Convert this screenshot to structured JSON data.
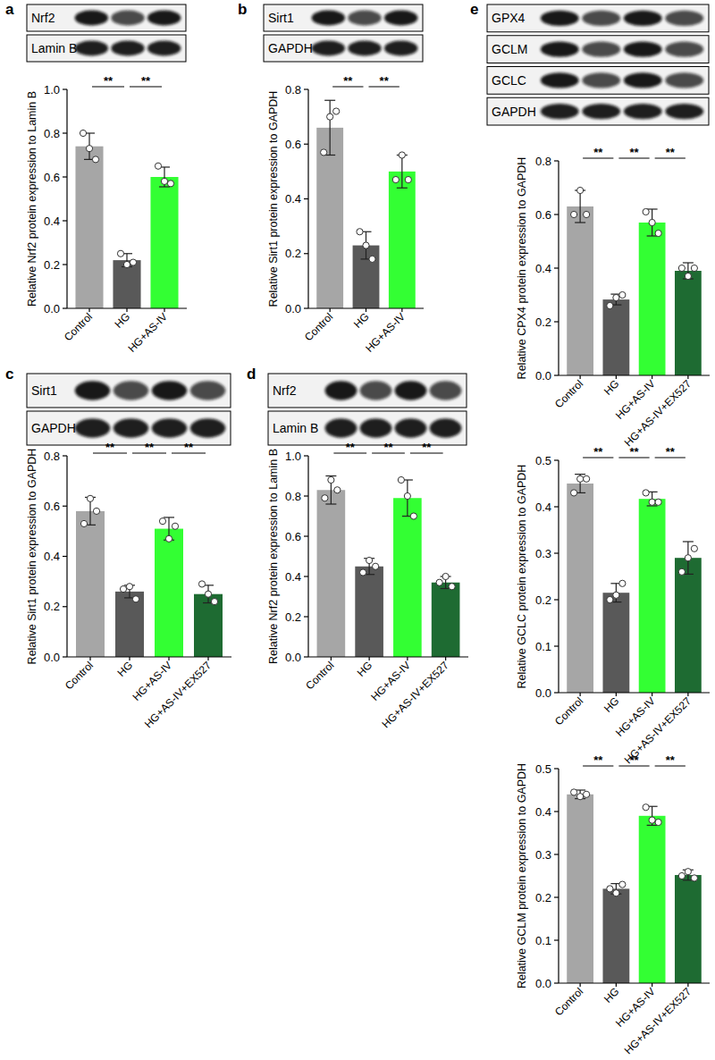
{
  "chart_data": [
    {
      "type": "bar",
      "panel": "a",
      "blot_labels": [
        "Nrf2",
        "Lamin B"
      ],
      "y_label": "Relative Nrf2 protein expression to Lamin B",
      "categories": [
        "Control",
        "HG",
        "HG+AS-IV"
      ],
      "values": [
        0.74,
        0.22,
        0.6
      ],
      "errors": [
        0.06,
        0.03,
        0.045
      ],
      "points": [
        [
          0.8,
          0.73,
          0.68
        ],
        [
          0.25,
          0.2,
          0.21
        ],
        [
          0.65,
          0.58,
          0.57
        ]
      ],
      "colors": [
        "#a6a6a6",
        "#595959",
        "#33ff33"
      ],
      "ylim": [
        0,
        1.0
      ],
      "yticks": [
        {
          "value": 0,
          "label": "0.0"
        },
        0.2,
        0.4,
        0.6,
        0.8,
        {
          "value": 1.0,
          "label": "1.0"
        }
      ],
      "annotations": [
        {
          "text": "**",
          "groups": [
            "Control",
            "HG"
          ]
        },
        {
          "text": "**",
          "groups": [
            "HG",
            "HG+AS-IV"
          ]
        }
      ]
    },
    {
      "type": "bar",
      "panel": "b",
      "blot_labels": [
        "Sirt1",
        "GAPDH"
      ],
      "y_label": "Relative Sirt1 protein expression to GAPDH",
      "categories": [
        "Control",
        "HG",
        "HG+AS-IV"
      ],
      "values": [
        0.66,
        0.23,
        0.5
      ],
      "errors": [
        0.1,
        0.05,
        0.06
      ],
      "points": [
        [
          0.57,
          0.7,
          0.72
        ],
        [
          0.28,
          0.23,
          0.18
        ],
        [
          0.47,
          0.56,
          0.47
        ]
      ],
      "colors": [
        "#a6a6a6",
        "#595959",
        "#33ff33"
      ],
      "ylim": [
        0,
        0.8
      ],
      "yticks": [
        {
          "value": 0,
          "label": "0.0"
        },
        0.2,
        0.4,
        0.6,
        0.8
      ],
      "annotations": [
        {
          "text": "**",
          "groups": [
            "Control",
            "HG"
          ]
        },
        {
          "text": "**",
          "groups": [
            "HG",
            "HG+AS-IV"
          ]
        }
      ]
    },
    {
      "type": "bar",
      "panel": "c",
      "blot_labels": [
        "Sirt1",
        "GAPDH"
      ],
      "y_label": "Relative Sirt1 protein expression to GAPDH",
      "categories": [
        "Control",
        "HG",
        "HG+AS-IV",
        "HG+AS-IV+EX527"
      ],
      "values": [
        0.58,
        0.26,
        0.51,
        0.25
      ],
      "errors": [
        0.055,
        0.025,
        0.045,
        0.035
      ],
      "points": [
        [
          0.53,
          0.63,
          0.58
        ],
        [
          0.27,
          0.28,
          0.23
        ],
        [
          0.54,
          0.47,
          0.52
        ],
        [
          0.29,
          0.25,
          0.22
        ]
      ],
      "colors": [
        "#a6a6a6",
        "#595959",
        "#33ff33",
        "#1e6b32"
      ],
      "ylim": [
        0,
        0.8
      ],
      "yticks": [
        {
          "value": 0,
          "label": "0.0"
        },
        0.2,
        0.4,
        0.6,
        0.8
      ],
      "annotations": [
        {
          "text": "**",
          "groups": [
            "Control",
            "HG"
          ]
        },
        {
          "text": "**",
          "groups": [
            "HG",
            "HG+AS-IV"
          ]
        },
        {
          "text": "**",
          "groups": [
            "HG+AS-IV",
            "HG+AS-IV+EX527"
          ]
        }
      ]
    },
    {
      "type": "bar",
      "panel": "d",
      "blot_labels": [
        "Nrf2",
        "Lamin B"
      ],
      "y_label": "Relative Nrf2 protein expression to Lamin B",
      "categories": [
        "Control",
        "HG",
        "HG+AS-IV",
        "HG+AS-IV+EX527"
      ],
      "values": [
        0.83,
        0.45,
        0.79,
        0.37
      ],
      "errors": [
        0.07,
        0.04,
        0.09,
        0.03
      ],
      "points": [
        [
          0.79,
          0.88,
          0.83
        ],
        [
          0.42,
          0.48,
          0.45
        ],
        [
          0.88,
          0.8,
          0.7
        ],
        [
          0.37,
          0.4,
          0.35
        ]
      ],
      "colors": [
        "#a6a6a6",
        "#595959",
        "#33ff33",
        "#1e6b32"
      ],
      "ylim": [
        0,
        1.0
      ],
      "yticks": [
        {
          "value": 0,
          "label": "0.0"
        },
        0.2,
        0.4,
        0.6,
        0.8,
        {
          "value": 1.0,
          "label": "1.0"
        }
      ],
      "annotations": [
        {
          "text": "**",
          "groups": [
            "Control",
            "HG"
          ]
        },
        {
          "text": "**",
          "groups": [
            "HG",
            "HG+AS-IV"
          ]
        },
        {
          "text": "**",
          "groups": [
            "HG+AS-IV",
            "HG+AS-IV+EX527"
          ]
        }
      ]
    },
    {
      "type": "bar",
      "panel": "e",
      "blot_labels": [
        "GPX4",
        "GCLM",
        "GCLC",
        "GAPDH"
      ],
      "y_label": "Relative CPX4 protein expression to GAPDH",
      "categories": [
        "Control",
        "HG",
        "HG+AS-IV",
        "HG+AS-IV+EX527"
      ],
      "values": [
        0.63,
        0.283,
        0.57,
        0.39
      ],
      "errors": [
        0.06,
        0.02,
        0.05,
        0.03
      ],
      "points": [
        [
          0.6,
          0.69,
          0.6
        ],
        [
          0.26,
          0.29,
          0.3
        ],
        [
          0.61,
          0.57,
          0.53
        ],
        [
          0.4,
          0.37,
          0.4
        ]
      ],
      "colors": [
        "#a6a6a6",
        "#595959",
        "#33ff33",
        "#1e6b32"
      ],
      "ylim": [
        0,
        0.8
      ],
      "yticks": [
        {
          "value": 0,
          "label": "0.0"
        },
        0.2,
        0.4,
        0.6,
        0.8
      ],
      "annotations": [
        {
          "text": "**",
          "groups": [
            "Control",
            "HG"
          ]
        },
        {
          "text": "**",
          "groups": [
            "HG",
            "HG+AS-IV"
          ]
        },
        {
          "text": "**",
          "groups": [
            "HG+AS-IV",
            "HG+AS-IV+EX527"
          ]
        }
      ]
    },
    {
      "type": "bar",
      "y_label": "Relative GCLC protein expression to GAPDH",
      "categories": [
        "Control",
        "HG",
        "HG+AS-IV",
        "HG+AS-IV+EX527"
      ],
      "values": [
        0.45,
        0.215,
        0.417,
        0.29
      ],
      "errors": [
        0.02,
        0.02,
        0.015,
        0.035
      ],
      "points": [
        [
          0.43,
          0.46,
          0.46
        ],
        [
          0.2,
          0.21,
          0.235
        ],
        [
          0.43,
          0.41,
          0.41
        ],
        [
          0.26,
          0.29,
          0.31
        ]
      ],
      "colors": [
        "#a6a6a6",
        "#595959",
        "#33ff33",
        "#1e6b32"
      ],
      "ylim": [
        0,
        0.5
      ],
      "yticks": [
        {
          "value": 0,
          "label": "0.0"
        },
        0.1,
        0.2,
        0.3,
        0.4,
        0.5
      ],
      "annotations": [
        {
          "text": "**",
          "groups": [
            "Control",
            "HG"
          ]
        },
        {
          "text": "**",
          "groups": [
            "HG",
            "HG+AS-IV"
          ]
        },
        {
          "text": "**",
          "groups": [
            "HG+AS-IV",
            "HG+AS-IV+EX527"
          ]
        }
      ]
    },
    {
      "type": "bar",
      "y_label": "Relative GCLM protein expression to GAPDH",
      "categories": [
        "Control",
        "HG",
        "HG+AS-IV",
        "HG+AS-IV+EX527"
      ],
      "values": [
        0.44,
        0.22,
        0.39,
        0.252
      ],
      "errors": [
        0.01,
        0.012,
        0.022,
        0.012
      ],
      "points": [
        [
          0.445,
          0.435,
          0.44
        ],
        [
          0.22,
          0.21,
          0.23
        ],
        [
          0.41,
          0.38,
          0.375
        ],
        [
          0.25,
          0.26,
          0.245
        ]
      ],
      "colors": [
        "#a6a6a6",
        "#595959",
        "#33ff33",
        "#1e6b32"
      ],
      "ylim": [
        0,
        0.5
      ],
      "yticks": [
        {
          "value": 0,
          "label": "0.0"
        },
        0.1,
        0.2,
        0.3,
        0.4,
        0.5
      ],
      "annotations": [
        {
          "text": "**",
          "groups": [
            "Control",
            "HG"
          ]
        },
        {
          "text": "**",
          "groups": [
            "HG",
            "HG+AS-IV"
          ]
        },
        {
          "text": "**",
          "groups": [
            "HG+AS-IV",
            "HG+AS-IV+EX527"
          ]
        }
      ]
    }
  ]
}
